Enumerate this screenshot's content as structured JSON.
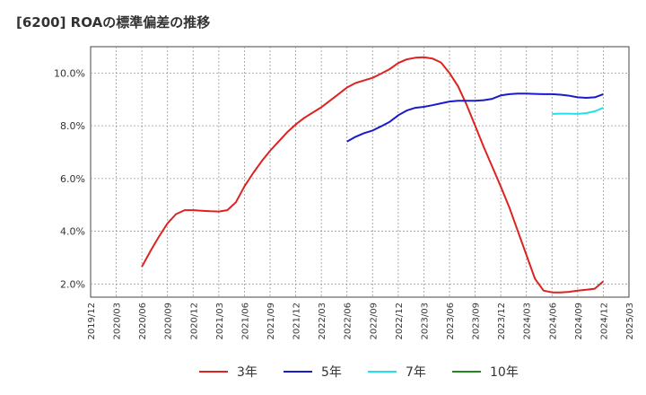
{
  "chart_data": {
    "type": "line",
    "title": "[6200]  ROAの標準偏差の推移",
    "xlabel": "",
    "ylabel": "",
    "ylim": [
      1.5,
      11.0
    ],
    "y_ticks": [
      2.0,
      4.0,
      6.0,
      8.0,
      10.0
    ],
    "y_tick_labels": [
      "2.0%",
      "4.0%",
      "6.0%",
      "8.0%",
      "10.0%"
    ],
    "x_ticks": [
      "2019/12",
      "2020/03",
      "2020/06",
      "2020/09",
      "2020/12",
      "2021/03",
      "2021/06",
      "2021/09",
      "2021/12",
      "2022/03",
      "2022/06",
      "2022/09",
      "2022/12",
      "2023/03",
      "2023/06",
      "2023/09",
      "2023/12",
      "2024/03",
      "2024/06",
      "2024/09",
      "2024/12",
      "2025/03"
    ],
    "grid": true,
    "legend_position": "bottom",
    "series": [
      {
        "name": "3年",
        "color": "#dd2222",
        "points": [
          [
            "2020/06",
            2.65
          ],
          [
            "2020/07",
            3.25
          ],
          [
            "2020/08",
            3.8
          ],
          [
            "2020/09",
            4.3
          ],
          [
            "2020/10",
            4.65
          ],
          [
            "2020/11",
            4.8
          ],
          [
            "2020/12",
            4.8
          ],
          [
            "2021/01",
            4.78
          ],
          [
            "2021/02",
            4.76
          ],
          [
            "2021/03",
            4.75
          ],
          [
            "2021/04",
            4.8
          ],
          [
            "2021/05",
            5.1
          ],
          [
            "2021/06",
            5.7
          ],
          [
            "2021/07",
            6.2
          ],
          [
            "2021/08",
            6.65
          ],
          [
            "2021/09",
            7.05
          ],
          [
            "2021/10",
            7.4
          ],
          [
            "2021/11",
            7.75
          ],
          [
            "2021/12",
            8.05
          ],
          [
            "2022/01",
            8.3
          ],
          [
            "2022/02",
            8.5
          ],
          [
            "2022/03",
            8.7
          ],
          [
            "2022/04",
            8.95
          ],
          [
            "2022/05",
            9.2
          ],
          [
            "2022/06",
            9.45
          ],
          [
            "2022/07",
            9.62
          ],
          [
            "2022/08",
            9.72
          ],
          [
            "2022/09",
            9.82
          ],
          [
            "2022/10",
            9.98
          ],
          [
            "2022/11",
            10.15
          ],
          [
            "2022/12",
            10.38
          ],
          [
            "2023/01",
            10.52
          ],
          [
            "2023/02",
            10.58
          ],
          [
            "2023/03",
            10.6
          ],
          [
            "2023/04",
            10.55
          ],
          [
            "2023/05",
            10.4
          ],
          [
            "2023/06",
            10.0
          ],
          [
            "2023/07",
            9.5
          ],
          [
            "2023/08",
            8.8
          ],
          [
            "2023/09",
            8.0
          ],
          [
            "2023/10",
            7.2
          ],
          [
            "2023/11",
            6.45
          ],
          [
            "2023/12",
            5.7
          ],
          [
            "2024/01",
            4.9
          ],
          [
            "2024/02",
            4.0
          ],
          [
            "2024/03",
            3.1
          ],
          [
            "2024/04",
            2.2
          ],
          [
            "2024/05",
            1.75
          ],
          [
            "2024/06",
            1.68
          ],
          [
            "2024/07",
            1.68
          ],
          [
            "2024/08",
            1.7
          ],
          [
            "2024/09",
            1.75
          ],
          [
            "2024/10",
            1.78
          ],
          [
            "2024/11",
            1.82
          ],
          [
            "2024/12",
            2.1
          ]
        ]
      },
      {
        "name": "5年",
        "color": "#1a1acc",
        "points": [
          [
            "2022/06",
            7.4
          ],
          [
            "2022/07",
            7.58
          ],
          [
            "2022/08",
            7.72
          ],
          [
            "2022/09",
            7.82
          ],
          [
            "2022/10",
            7.98
          ],
          [
            "2022/11",
            8.15
          ],
          [
            "2022/12",
            8.4
          ],
          [
            "2023/01",
            8.58
          ],
          [
            "2023/02",
            8.68
          ],
          [
            "2023/03",
            8.72
          ],
          [
            "2023/04",
            8.78
          ],
          [
            "2023/05",
            8.85
          ],
          [
            "2023/06",
            8.92
          ],
          [
            "2023/07",
            8.95
          ],
          [
            "2023/08",
            8.95
          ],
          [
            "2023/09",
            8.95
          ],
          [
            "2023/10",
            8.97
          ],
          [
            "2023/11",
            9.02
          ],
          [
            "2023/12",
            9.15
          ],
          [
            "2024/01",
            9.2
          ],
          [
            "2024/02",
            9.22
          ],
          [
            "2024/03",
            9.22
          ],
          [
            "2024/04",
            9.21
          ],
          [
            "2024/05",
            9.2
          ],
          [
            "2024/06",
            9.2
          ],
          [
            "2024/07",
            9.18
          ],
          [
            "2024/08",
            9.14
          ],
          [
            "2024/09",
            9.08
          ],
          [
            "2024/10",
            9.06
          ],
          [
            "2024/11",
            9.08
          ],
          [
            "2024/12",
            9.2
          ]
        ]
      },
      {
        "name": "7年",
        "color": "#22e0e8",
        "points": [
          [
            "2024/06",
            8.45
          ],
          [
            "2024/07",
            8.46
          ],
          [
            "2024/08",
            8.46
          ],
          [
            "2024/09",
            8.45
          ],
          [
            "2024/10",
            8.48
          ],
          [
            "2024/11",
            8.55
          ],
          [
            "2024/12",
            8.68
          ]
        ]
      },
      {
        "name": "10年",
        "color": "#228822",
        "points": []
      }
    ]
  }
}
